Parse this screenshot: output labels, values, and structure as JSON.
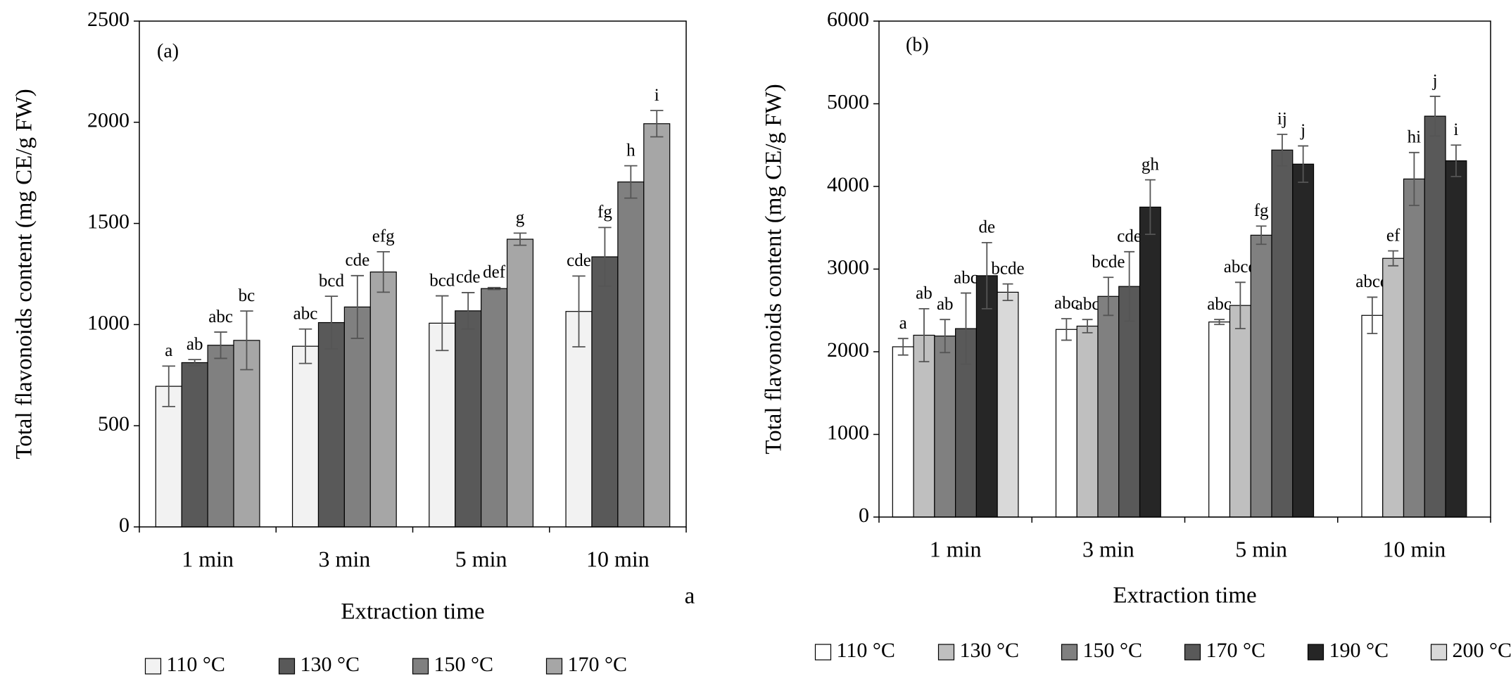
{
  "chart_data": [
    {
      "type": "bar",
      "panel_label": "(a)",
      "annotation": "a",
      "x_label": "Extraction time",
      "y_label": "Total flavonoids content (mg CE/g FW)",
      "categories": [
        "1 min",
        "3 min",
        "5 min",
        "10 min"
      ],
      "ylim": [
        0,
        2500
      ],
      "yticks": [
        0,
        500,
        1000,
        1500,
        2000,
        2500
      ],
      "series": [
        {
          "name": "110 °C",
          "color": "#f2f2f2",
          "values": [
            695,
            893,
            1007,
            1065
          ],
          "errors": [
            100,
            85,
            135,
            175
          ],
          "letters": [
            "a",
            "abc",
            "bcd",
            "cde"
          ]
        },
        {
          "name": "130 °C",
          "color": "#595959",
          "values": [
            812,
            1010,
            1068,
            1335
          ],
          "errors": [
            15,
            130,
            90,
            145
          ],
          "letters": [
            "ab",
            "bcd",
            "cde",
            "fg"
          ]
        },
        {
          "name": "150 °C",
          "color": "#808080",
          "values": [
            898,
            1087,
            1178,
            1705
          ],
          "errors": [
            65,
            155,
            5,
            80
          ],
          "letters": [
            "abc",
            "cde",
            "def",
            "h"
          ]
        },
        {
          "name": "170 °C",
          "color": "#a6a6a6",
          "values": [
            922,
            1260,
            1422,
            1993
          ],
          "errors": [
            145,
            100,
            30,
            65
          ],
          "letters": [
            "bc",
            "efg",
            "g",
            "i"
          ]
        }
      ]
    },
    {
      "type": "bar",
      "panel_label": "(b)",
      "x_label": "Extraction time",
      "y_label": "Total flavonoids content (mg CE/g FW)",
      "categories": [
        "1 min",
        "3 min",
        "5 min",
        "10 min"
      ],
      "ylim": [
        0,
        6000
      ],
      "yticks": [
        0,
        1000,
        2000,
        3000,
        4000,
        5000,
        6000
      ],
      "series": [
        {
          "name": "110 °C",
          "color": "#ffffff",
          "values": [
            2060,
            2270,
            2360,
            2440
          ],
          "errors": [
            100,
            130,
            30,
            220
          ],
          "letters": [
            "a",
            "abc",
            "abc",
            "abcd"
          ]
        },
        {
          "name": "130 °C",
          "color": "#bfbfbf",
          "values": [
            2200,
            2310,
            2560,
            3130
          ],
          "errors": [
            320,
            80,
            280,
            90
          ],
          "letters": [
            "ab",
            "abc",
            "abcd",
            "ef"
          ]
        },
        {
          "name": "150 °C",
          "color": "#808080",
          "values": [
            2190,
            2670,
            3410,
            4090
          ],
          "errors": [
            200,
            230,
            110,
            320
          ],
          "letters": [
            "ab",
            "bcde",
            "fg",
            "hi"
          ]
        },
        {
          "name": "170 °C",
          "color": "#595959",
          "values": [
            2280,
            2790,
            4440,
            4850
          ],
          "errors": [
            430,
            420,
            190,
            240
          ],
          "letters": [
            "abc",
            "cde",
            "ij",
            "j"
          ]
        },
        {
          "name": "190 °C",
          "color": "#262626",
          "values": [
            2920,
            3750,
            4270,
            4310
          ],
          "errors": [
            400,
            330,
            220,
            190
          ],
          "letters": [
            "de",
            "gh",
            "j",
            "i"
          ]
        },
        {
          "name": "200 °C",
          "color": "#d9d9d9",
          "values": [
            2720,
            null,
            null,
            null
          ],
          "errors": [
            100,
            null,
            null,
            null
          ],
          "letters": [
            "bcde",
            null,
            null,
            null
          ]
        }
      ]
    }
  ]
}
